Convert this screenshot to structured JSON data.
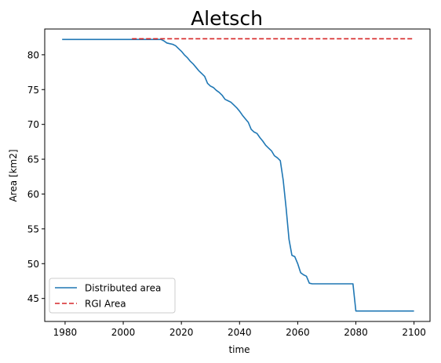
{
  "chart_data": {
    "type": "line",
    "title": "Aletsch",
    "xlabel": "time",
    "ylabel": "Area [km2]",
    "xlim": [
      1973,
      2105.5
    ],
    "ylim": [
      41.7,
      83.7
    ],
    "xticks": [
      1980,
      2000,
      2020,
      2040,
      2060,
      2080,
      2100
    ],
    "yticks": [
      45,
      50,
      55,
      60,
      65,
      70,
      75,
      80
    ],
    "grid": false,
    "legend_position": "lower left",
    "series": [
      {
        "name": "Distributed area",
        "color": "#1f77b4",
        "style": "solid",
        "x": [
          1979,
          1985,
          1990,
          1995,
          2000,
          2005,
          2010,
          2013,
          2014,
          2015,
          2016,
          2017,
          2018,
          2019,
          2020,
          2021,
          2022,
          2023,
          2024,
          2025,
          2026,
          2027,
          2028,
          2029,
          2030,
          2031,
          2032,
          2033,
          2034,
          2035,
          2036,
          2037,
          2038,
          2039,
          2040,
          2041,
          2042,
          2043,
          2044,
          2045,
          2046,
          2047,
          2048,
          2049,
          2050,
          2051,
          2052,
          2053,
          2054,
          2055,
          2056,
          2057,
          2058,
          2059,
          2060,
          2061,
          2062,
          2063,
          2064,
          2065,
          2066,
          2070,
          2075,
          2078,
          2079,
          2080,
          2085,
          2090,
          2095,
          2100
        ],
        "y": [
          82.2,
          82.2,
          82.2,
          82.2,
          82.2,
          82.2,
          82.2,
          82.2,
          82.0,
          81.7,
          81.6,
          81.5,
          81.3,
          80.9,
          80.5,
          80.0,
          79.6,
          79.1,
          78.7,
          78.2,
          77.7,
          77.3,
          76.9,
          75.9,
          75.5,
          75.3,
          74.9,
          74.6,
          74.2,
          73.6,
          73.4,
          73.2,
          72.8,
          72.4,
          71.9,
          71.3,
          70.8,
          70.3,
          69.3,
          68.9,
          68.7,
          68.1,
          67.6,
          67.0,
          66.6,
          66.2,
          65.5,
          65.2,
          64.8,
          62.0,
          58.0,
          53.5,
          51.2,
          51.0,
          50.0,
          48.7,
          48.4,
          48.2,
          47.2,
          47.1,
          47.1,
          47.1,
          47.1,
          47.1,
          47.1,
          43.2,
          43.2,
          43.2,
          43.2,
          43.2
        ]
      },
      {
        "name": "RGI Area",
        "color": "#d62728",
        "style": "dashed",
        "x": [
          2003,
          2100
        ],
        "y": [
          82.3,
          82.3
        ]
      }
    ]
  }
}
